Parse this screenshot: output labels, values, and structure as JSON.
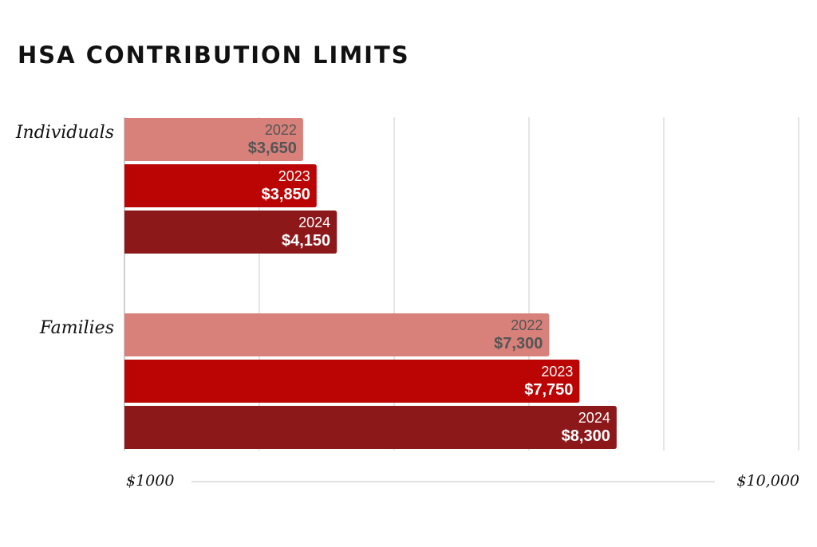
{
  "title": "HSA CONTRIBUTION LIMITS",
  "colors": {
    "2022": "#d8807a",
    "2023": "#bb0404",
    "2024": "#8c181a",
    "grid": "#d4d4d4",
    "dark_text": "#555555",
    "light_text": "#ffffff"
  },
  "chart_data": {
    "type": "bar",
    "orientation": "horizontal",
    "title": "HSA CONTRIBUTION LIMITS",
    "categories": [
      "Individuals",
      "Families"
    ],
    "series": [
      {
        "name": "2022",
        "values": [
          3650,
          7300
        ],
        "labels": [
          "$3,650",
          "$7,300"
        ]
      },
      {
        "name": "2023",
        "values": [
          3850,
          7750
        ],
        "labels": [
          "$3,850",
          "$7,750"
        ]
      },
      {
        "name": "2024",
        "values": [
          4150,
          8300
        ],
        "labels": [
          "$4,150",
          "$8,300"
        ]
      }
    ],
    "xlim": [
      1000,
      10000
    ],
    "axis_labels": {
      "min": "$1000",
      "max": "$10,000"
    },
    "grid": true,
    "legend": "none"
  }
}
